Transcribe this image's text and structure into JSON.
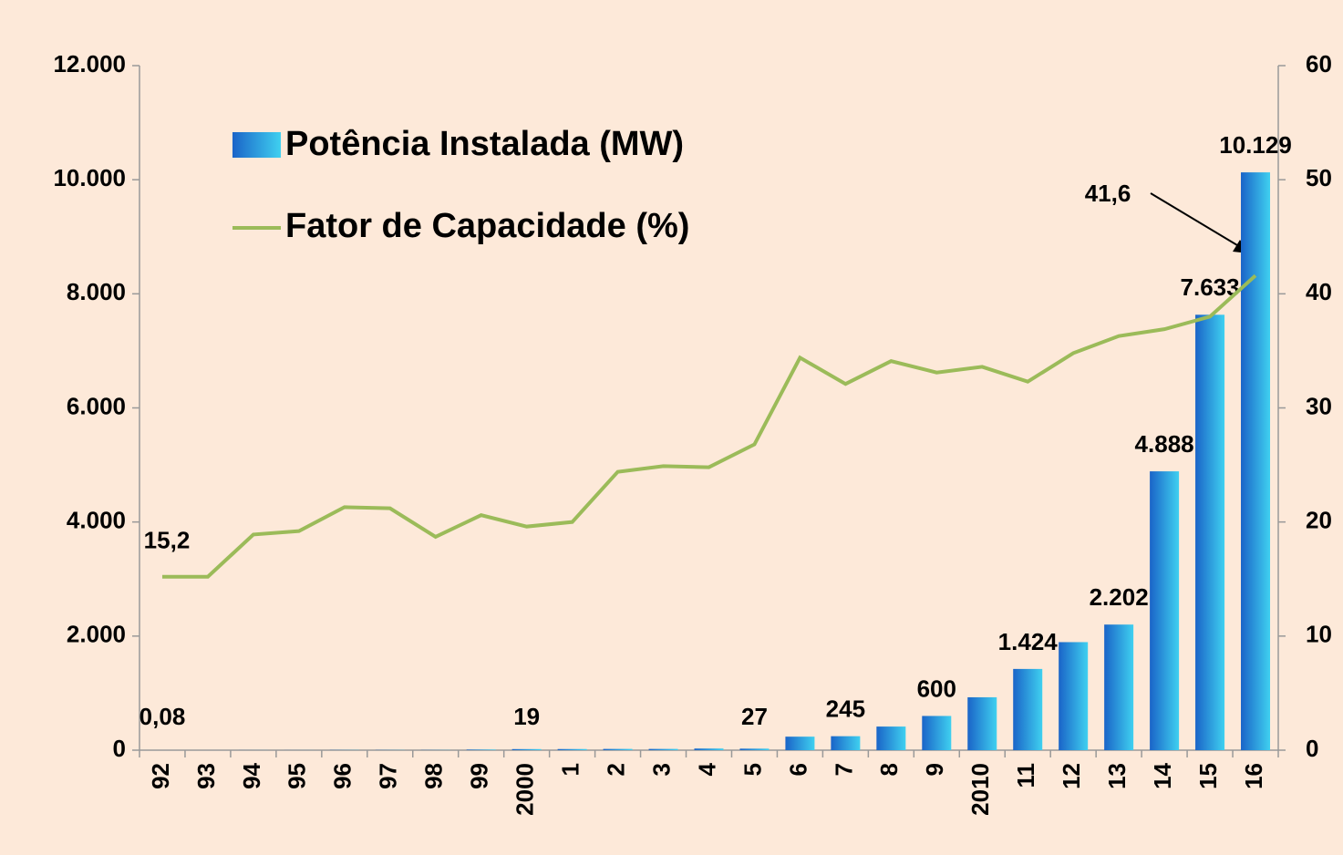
{
  "chart_data": {
    "type": "bar",
    "categories": [
      "92",
      "93",
      "94",
      "95",
      "96",
      "97",
      "98",
      "99",
      "2000",
      "1",
      "2",
      "3",
      "4",
      "5",
      "6",
      "7",
      "8",
      "9",
      "2010",
      "11",
      "12",
      "13",
      "14",
      "15",
      "16"
    ],
    "series": [
      {
        "name": "Potência Instalada (MW)",
        "type": "bar",
        "color": "#1a78d6",
        "values": [
          0.08,
          0.08,
          1,
          1,
          3,
          3,
          3,
          10,
          19,
          20,
          22,
          22,
          29,
          27,
          237,
          245,
          414,
          600,
          927,
          1424,
          1894,
          2202,
          4888,
          7633,
          10129
        ],
        "value_labels": [
          "0,08",
          null,
          null,
          null,
          null,
          null,
          null,
          null,
          "19",
          null,
          null,
          null,
          null,
          "27",
          null,
          "245",
          null,
          "600",
          null,
          "1.424",
          null,
          "2.202",
          "4.888",
          "7.633",
          "10.129"
        ]
      },
      {
        "name": "Fator de Capacidade (%)",
        "type": "line",
        "axis": "y2",
        "color": "#9bbb59",
        "values": [
          15.2,
          15.2,
          18.9,
          19.2,
          21.3,
          21.2,
          18.7,
          20.6,
          19.6,
          20.0,
          24.4,
          24.9,
          24.8,
          26.8,
          34.4,
          32.1,
          34.1,
          33.1,
          33.6,
          32.3,
          34.8,
          36.3,
          36.9,
          38.0,
          41.6
        ],
        "value_labels": [
          "15,2",
          null,
          null,
          null,
          null,
          null,
          null,
          null,
          null,
          null,
          null,
          null,
          null,
          null,
          null,
          null,
          null,
          null,
          null,
          null,
          null,
          null,
          null,
          null,
          "41,6"
        ]
      }
    ],
    "ylim": [
      0,
      12000
    ],
    "yticks": [
      0,
      {
        "value": 2000,
        "label": "2.000"
      },
      {
        "value": 4000,
        "label": "4.000"
      },
      {
        "value": 6000,
        "label": "6.000"
      },
      {
        "value": 8000,
        "label": "8.000"
      },
      {
        "value": 10000,
        "label": "10.000"
      },
      {
        "value": 12000,
        "label": "12.000"
      }
    ],
    "y2lim": [
      0,
      60
    ],
    "y2ticks": [
      0,
      10,
      20,
      30,
      40,
      50,
      60
    ],
    "grid": false
  }
}
